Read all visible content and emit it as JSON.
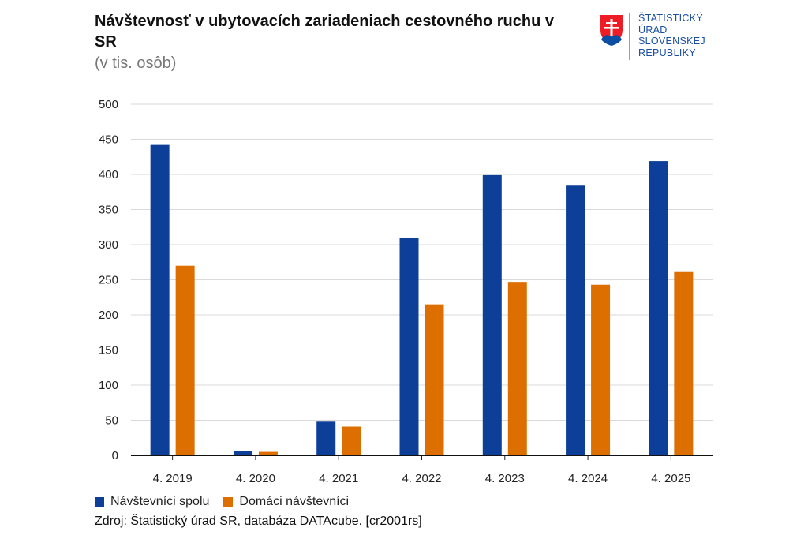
{
  "header": {
    "title": "Návštevnosť v ubytovacích zariadeniach cestovného ruchu v SR",
    "subtitle": "(v tis. osôb)"
  },
  "logo": {
    "lines": [
      "ŠTATISTICKÝ",
      "ÚRAD",
      "SLOVENSKEJ",
      "REPUBLIKY"
    ]
  },
  "colors": {
    "series1": "#0d3f99",
    "series2": "#dd6f00"
  },
  "chart_data": {
    "type": "bar",
    "title": "Návštevnosť v ubytovacích zariadeniach cestovného ruchu v SR",
    "subtitle": "(v tis. osôb)",
    "xlabel": "",
    "ylabel": "",
    "ylim": [
      0,
      500
    ],
    "yticks": [
      0,
      50,
      100,
      150,
      200,
      250,
      300,
      350,
      400,
      450,
      500
    ],
    "grid": true,
    "legend_position": "bottom-left",
    "categories": [
      "4. 2019",
      "4. 2020",
      "4. 2021",
      "4. 2022",
      "4. 2023",
      "4. 2024",
      "4. 2025"
    ],
    "series": [
      {
        "name": "Návštevníci spolu",
        "values": [
          442,
          6,
          48,
          310,
          399,
          384,
          419
        ]
      },
      {
        "name": "Domáci návštevníci",
        "values": [
          270,
          5,
          41,
          215,
          247,
          243,
          261
        ]
      }
    ]
  },
  "legend": {
    "items": [
      "Návštevníci spolu",
      "Domáci návštevníci"
    ]
  },
  "footer": {
    "source": "Zdroj: Štatistický úrad SR, databáza DATAcube. [cr2001rs]"
  }
}
